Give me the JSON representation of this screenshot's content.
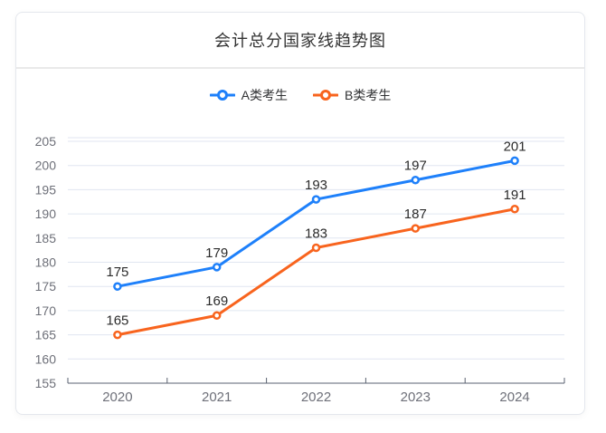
{
  "card": {
    "title": "会计总分国家线趋势图"
  },
  "colors": {
    "series_a": "#1e80fa",
    "series_b": "#f8641e",
    "grid_line": "#e0e6f1",
    "axis_line": "#5a6170",
    "axis_label": "#6e7079",
    "data_label": "#2b2b2b",
    "card_border": "#e4e7ed",
    "divider": "#e9e9e9",
    "title_text": "#333333",
    "legend_text": "#303133"
  },
  "chart_data": {
    "type": "line",
    "title": "会计总分国家线趋势图",
    "categories": [
      "2020",
      "2021",
      "2022",
      "2023",
      "2024"
    ],
    "series": [
      {
        "name": "A类考生",
        "color": "#1e80fa",
        "values": [
          175,
          179,
          193,
          197,
          201
        ]
      },
      {
        "name": "B类考生",
        "color": "#f8641e",
        "values": [
          165,
          169,
          183,
          187,
          191
        ]
      }
    ],
    "xlabel": "",
    "ylabel": "",
    "ylim": [
      155,
      205
    ],
    "y_ticks": [
      155,
      160,
      165,
      170,
      175,
      180,
      185,
      190,
      195,
      200,
      205
    ],
    "grid": true,
    "legend_position": "top",
    "data_labels": true,
    "marker": "empty-circle"
  }
}
